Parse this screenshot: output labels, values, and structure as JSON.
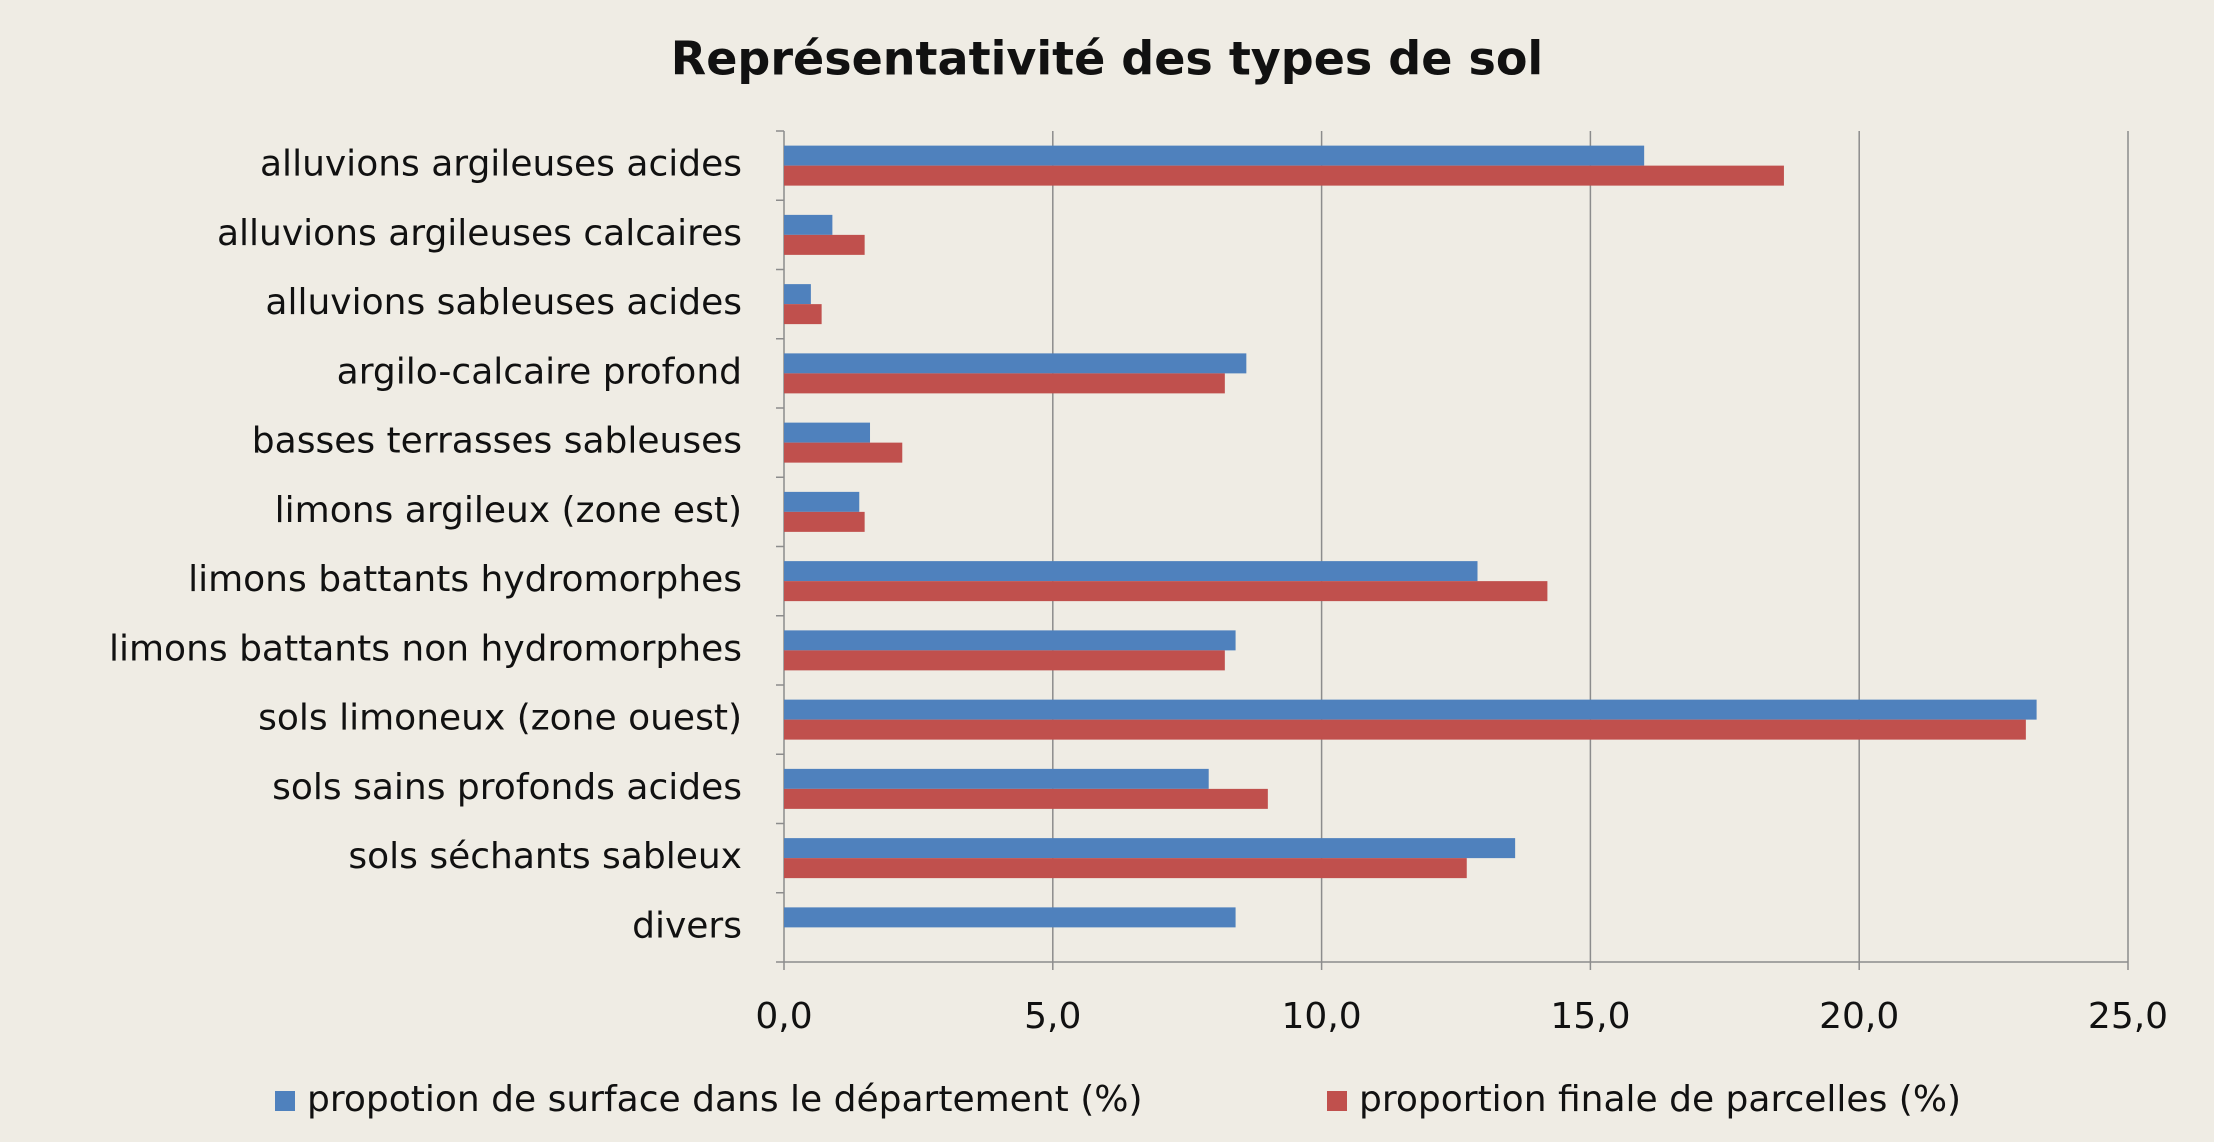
{
  "chart_data": {
    "type": "bar",
    "orientation": "horizontal",
    "title": "Représentativité des types de sol",
    "categories": [
      "alluvions argileuses acides",
      "alluvions argileuses calcaires",
      "alluvions sableuses acides",
      "argilo-calcaire profond",
      "basses terrasses sableuses",
      "limons argileux (zone est)",
      "limons battants hydromorphes",
      "limons battants non hydromorphes",
      "sols limoneux (zone ouest)",
      "sols sains profonds acides",
      "sols séchants sableux",
      "divers"
    ],
    "series": [
      {
        "name": "propotion de surface dans le département (%)",
        "color": "#4f81bd",
        "values": [
          16.0,
          0.9,
          0.5,
          8.6,
          1.6,
          1.4,
          12.9,
          8.4,
          23.3,
          7.9,
          13.6,
          8.4
        ]
      },
      {
        "name": "proportion finale de parcelles (%)",
        "color": "#c0504d",
        "values": [
          18.6,
          1.5,
          0.7,
          8.2,
          2.2,
          1.5,
          14.2,
          8.2,
          23.1,
          9.0,
          12.7,
          null
        ]
      }
    ],
    "xlim": [
      0,
      25
    ],
    "xticks": [
      {
        "value": 0,
        "label": "0,0"
      },
      {
        "value": 5,
        "label": "5,0"
      },
      {
        "value": 10,
        "label": "10,0"
      },
      {
        "value": 15,
        "label": "15,0"
      },
      {
        "value": 20,
        "label": "20,0"
      },
      {
        "value": 25,
        "label": "25,0"
      }
    ],
    "grid": true,
    "legend": "bottom"
  }
}
